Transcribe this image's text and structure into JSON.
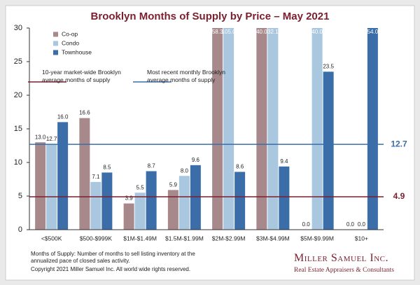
{
  "chart_data": {
    "type": "bar",
    "title": "Brooklyn Months of Supply by Price – May 2021",
    "categories": [
      "<$500K",
      "$500-$999K",
      "$1M-$1.49M",
      "$1.5M-$1.99M",
      "$2M-$2.99M",
      "$3M-$4.99M",
      "$5M-$9.99M",
      "$10+"
    ],
    "series": [
      {
        "name": "Co-op",
        "color": "#a8898b",
        "values": [
          13.0,
          16.6,
          3.9,
          5.9,
          58.3,
          40.0,
          0.0,
          0.0
        ],
        "value_labels": [
          "13.0",
          "16.6",
          "3.9",
          "5.9",
          "58.3",
          "40.0",
          "0.0",
          "0.0"
        ]
      },
      {
        "name": "Condo",
        "color": "#a9c7df",
        "values": [
          12.7,
          7.1,
          5.5,
          8.0,
          105.0,
          32.1,
          40.0,
          0.0
        ],
        "value_labels": [
          "12.7",
          "7.1",
          "5.5",
          "8.0",
          "105.0",
          "32.1",
          "40.0",
          "0.0"
        ]
      },
      {
        "name": "Townhouse",
        "color": "#3b6ea8",
        "values": [
          16.0,
          8.5,
          8.7,
          9.6,
          8.6,
          9.4,
          23.5,
          54.0
        ],
        "value_labels": [
          "16.0",
          "8.5",
          "8.7",
          "9.6",
          "8.6",
          "9.4",
          "23.5",
          "54.0"
        ]
      }
    ],
    "reference_lines": [
      {
        "name": "10-year market-wide Brooklyn average months of supply",
        "value": 4.9,
        "color": "#7a1f2e"
      },
      {
        "name": "Most recent monthly Brooklyn average months of supply",
        "value": 12.7,
        "color": "#3b6ea8"
      }
    ],
    "ylim": [
      0,
      30
    ],
    "yticks": [
      0,
      5,
      10,
      15,
      20,
      25,
      30
    ],
    "legend": "top-left"
  },
  "footnote": "Months of Supply: Number of months to sell listing inventory at the annualized pace of closed sales activity.",
  "copyright": "Copyright 2021 Miller Samuel Inc.  All world wide rights reserved.",
  "logo": {
    "name": "Miller Samuel Inc.",
    "tagline": "Real Estate Appraisers & Consultants"
  }
}
